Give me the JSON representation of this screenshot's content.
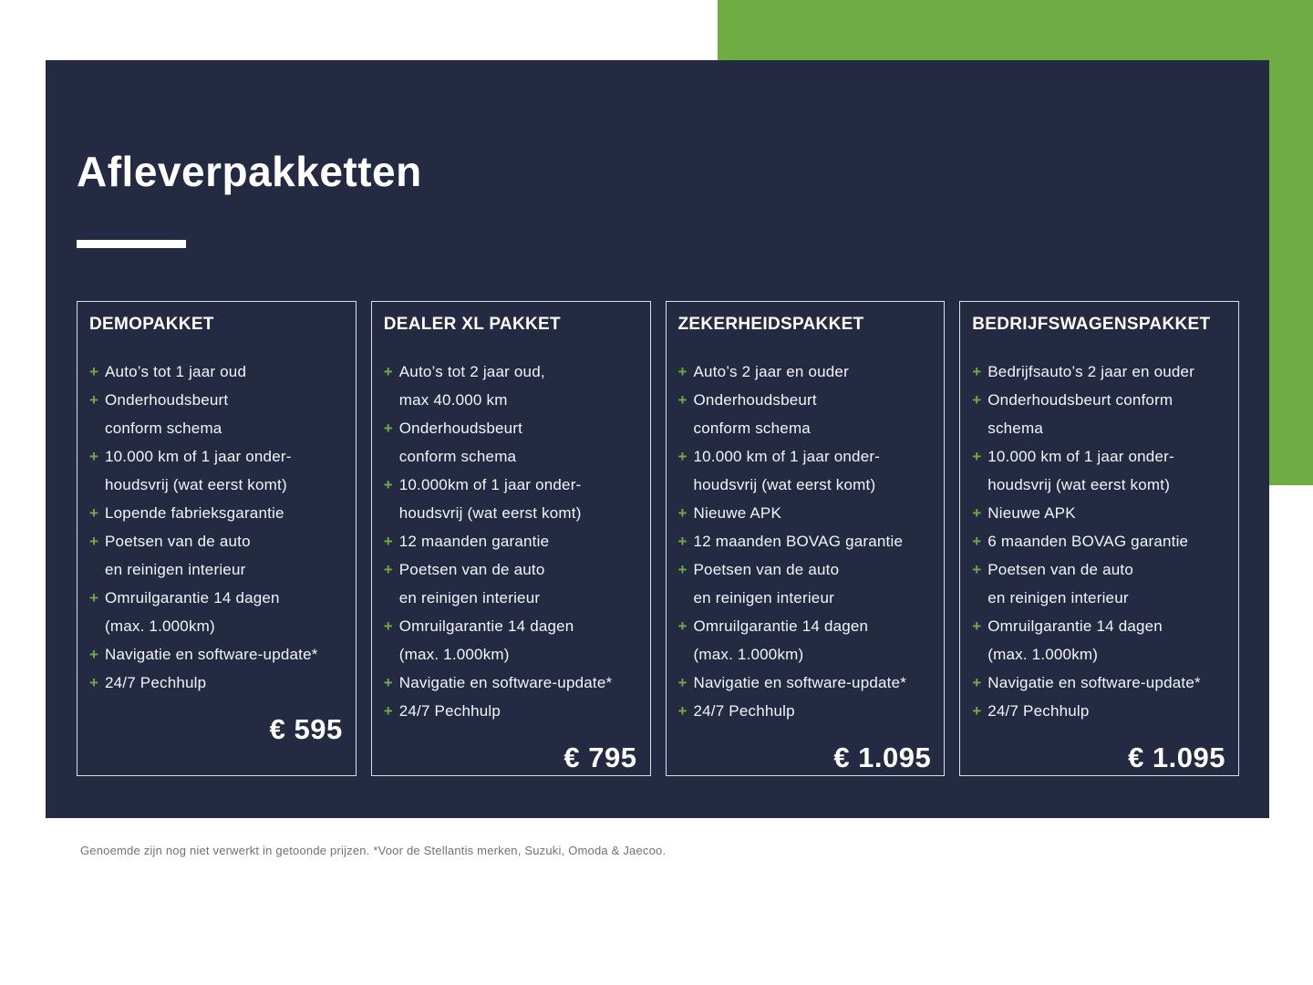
{
  "header": {
    "title": "Afleverpakketten"
  },
  "icons": {
    "plus": "+"
  },
  "colors": {
    "navy": "#232A42",
    "green": "#6FAC43",
    "text": "#F3F5F8",
    "footnote_gray": "#6E727B"
  },
  "cards": [
    {
      "title": "DEMOPAKKET",
      "price": "€ 595",
      "features": [
        "Auto’s tot 1 jaar oud",
        "Onderhoudsbeurt\nconform schema",
        "10.000 km of 1 jaar onder-\nhoudsvrij (wat eerst komt)",
        "Lopende fabrieksgarantie",
        "Poetsen van de auto\nen reinigen interieur",
        "Omruilgarantie 14 dagen\n(max. 1.000km)",
        "Navigatie en software-update*",
        "24/7 Pechhulp"
      ]
    },
    {
      "title": "DEALER XL PAKKET",
      "price": "€ 795",
      "features": [
        "Auto’s tot 2 jaar oud,\nmax 40.000 km",
        "Onderhoudsbeurt\nconform schema",
        "10.000km of 1 jaar onder-\nhoudsvrij (wat eerst komt)",
        "12 maanden garantie",
        "Poetsen van de auto\nen reinigen interieur",
        "Omruilgarantie 14 dagen\n(max. 1.000km)",
        "Navigatie en software-update*",
        "24/7 Pechhulp"
      ]
    },
    {
      "title": "ZEKERHEIDSPAKKET",
      "price": "€ 1.095",
      "features": [
        "Auto’s 2 jaar en ouder",
        "Onderhoudsbeurt\nconform schema",
        "10.000 km of 1 jaar onder-\nhoudsvrij (wat eerst komt)",
        "Nieuwe APK",
        "12 maanden BOVAG garantie",
        "Poetsen van de auto\nen reinigen interieur",
        "Omruilgarantie 14 dagen\n(max. 1.000km)",
        "Navigatie en software-update*",
        "24/7 Pechhulp"
      ]
    },
    {
      "title": "BEDRIJFSWAGENSPAKKET",
      "price": "€ 1.095",
      "features": [
        "Bedrijfsauto’s 2 jaar en ouder",
        "Onderhoudsbeurt conform\nschema",
        "10.000 km of 1 jaar onder-\nhoudsvrij (wat eerst komt)",
        "Nieuwe APK",
        "6 maanden BOVAG garantie",
        "Poetsen van de auto\nen reinigen interieur",
        "Omruilgarantie 14 dagen\n(max. 1.000km)",
        "Navigatie en software-update*",
        "24/7 Pechhulp"
      ]
    }
  ],
  "footnote": {
    "text": "Genoemde zijn nog niet verwerkt in getoonde prijzen. *Voor de Stellantis merken, Suzuki, Omoda & Jaecoo."
  }
}
